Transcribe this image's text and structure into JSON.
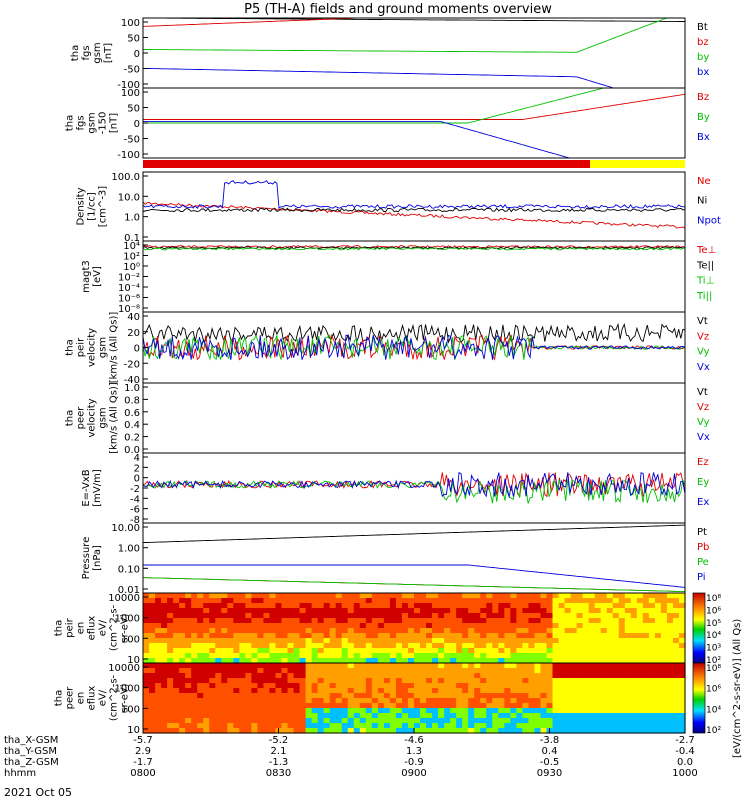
{
  "title": "P5 (TH-A) fields and ground moments overview",
  "date_label": "2021 Oct 05",
  "colors": {
    "black": "#000000",
    "red": "#e00000",
    "green": "#00c000",
    "blue": "#0000dd",
    "yellow": "#ffff00"
  },
  "chart_data": [
    {
      "id": "p1",
      "type": "line",
      "ylabel": [
        "tha",
        "fgs",
        "gsm",
        "[nT]"
      ],
      "ylim": [
        -100,
        100
      ],
      "yticks": [
        "100",
        "50",
        "0",
        "-50",
        "-100"
      ],
      "legend": [
        {
          "t": "Bt",
          "c": "black"
        },
        {
          "t": "bz",
          "c": "red"
        },
        {
          "t": "by",
          "c": "green"
        },
        {
          "t": "bx",
          "c": "blue"
        }
      ]
    },
    {
      "id": "p2",
      "type": "line",
      "ylabel": [
        "tha",
        "fgs",
        "gsm",
        "-150",
        "[nT]"
      ],
      "ylim": [
        -130,
        100
      ],
      "yticks": [
        "100",
        "50",
        "0",
        "-50",
        "-100"
      ],
      "legend": [
        {
          "t": "Bz",
          "c": "red"
        },
        {
          "t": "By",
          "c": "green"
        },
        {
          "t": "Bx",
          "c": "blue"
        }
      ]
    },
    {
      "id": "bar",
      "type": "mode-bar",
      "segments": [
        {
          "from": "08:00",
          "to": "09:39",
          "c": "red"
        },
        {
          "from": "09:39",
          "to": "10:00",
          "c": "yellow"
        }
      ]
    },
    {
      "id": "p3",
      "type": "line",
      "scale": "log",
      "ylabel": [
        "Density",
        "[1/cc]",
        "[cm^-3]"
      ],
      "yticks": [
        "100.0",
        "10.0",
        "1.0",
        "0.1"
      ],
      "legend": [
        {
          "t": "Ne",
          "c": "red"
        },
        {
          "t": "Ni",
          "c": "black"
        },
        {
          "t": "Npot",
          "c": "blue"
        }
      ]
    },
    {
      "id": "p4",
      "type": "line",
      "scale": "log",
      "ylabel": [
        "magt3",
        "[eV]"
      ],
      "yticks": [
        "10⁴",
        "10²",
        "10⁰",
        "10⁻²",
        "10⁻⁴",
        "10⁻⁶",
        "10⁻⁸"
      ],
      "legend": [
        {
          "t": "Te⊥",
          "c": "red"
        },
        {
          "t": "Te||",
          "c": "black"
        },
        {
          "t": "Ti⊥",
          "c": "green"
        },
        {
          "t": "Ti||",
          "c": "green"
        }
      ]
    },
    {
      "id": "p5",
      "type": "line",
      "ylabel": [
        "tha",
        "peir",
        "velocity",
        "gsm",
        "[km/s (All Qs)]"
      ],
      "ylim": [
        -40,
        40
      ],
      "yticks": [
        "40",
        "20",
        "0",
        "-20",
        "-40"
      ],
      "legend": [
        {
          "t": "Vt",
          "c": "black"
        },
        {
          "t": "Vz",
          "c": "red"
        },
        {
          "t": "Vy",
          "c": "green"
        },
        {
          "t": "Vx",
          "c": "blue"
        }
      ]
    },
    {
      "id": "p6",
      "type": "line",
      "ylabel": [
        "tha",
        "peer",
        "velocity",
        "gsm",
        "[km/s (All Qs)]"
      ],
      "ylim": [
        -1,
        1
      ],
      "yticks": [
        "1.0",
        "0.8",
        "0.6",
        "0.4",
        "0.2",
        "0.0"
      ],
      "legend": [
        {
          "t": "Vt",
          "c": "black"
        },
        {
          "t": "Vz",
          "c": "red"
        },
        {
          "t": "Vy",
          "c": "green"
        },
        {
          "t": "Vx",
          "c": "blue"
        }
      ]
    },
    {
      "id": "p7",
      "type": "line",
      "ylabel": [
        "E=-VxB",
        "[mV/m]"
      ],
      "ylim": [
        -8,
        5
      ],
      "yticks": [
        "4",
        "2",
        "0",
        "-2",
        "-4",
        "-6",
        "-8"
      ],
      "legend": [
        {
          "t": "Ez",
          "c": "red"
        },
        {
          "t": "Ey",
          "c": "green"
        },
        {
          "t": "Ex",
          "c": "blue"
        }
      ]
    },
    {
      "id": "p8",
      "type": "line",
      "scale": "log",
      "ylabel": [
        "Pressure",
        "[nPa]"
      ],
      "yticks": [
        "10.00",
        "1.00",
        "0.10",
        "0.01"
      ],
      "legend": [
        {
          "t": "Pt",
          "c": "black"
        },
        {
          "t": "Pb",
          "c": "red"
        },
        {
          "t": "Pe",
          "c": "green"
        },
        {
          "t": "Pi",
          "c": "blue"
        }
      ]
    },
    {
      "id": "p9",
      "type": "heatmap",
      "ylabel": [
        "tha",
        "peir",
        "en",
        "eflux",
        "eV/",
        "(cm^2-s-",
        "sr-eV)"
      ],
      "yticks": [
        "10000",
        "1000",
        "100",
        "10"
      ],
      "colorbar": [
        "10⁸",
        "10⁶",
        "10⁵",
        "10⁴",
        "10³",
        "10²"
      ]
    },
    {
      "id": "p10",
      "type": "heatmap",
      "ylabel": [
        "tha",
        "peer",
        "en",
        "eflux",
        "eV/",
        "(cm^2-s-",
        "sr-eV)"
      ],
      "yticks": [
        "10000",
        "1000",
        "100",
        "10"
      ],
      "colorbar": [
        "10⁸",
        "10⁶",
        "10⁴",
        "10²"
      ]
    }
  ],
  "colorbar_label": "[eV/(cm^2-s-sr-eV)] (All Qs)",
  "xaxis": {
    "rows": [
      {
        "label": "tha_X-GSM",
        "values": [
          "-5.7",
          "-5.2",
          "-4.6",
          "-3.8",
          "-2.7"
        ]
      },
      {
        "label": "tha_Y-GSM",
        "values": [
          "2.9",
          "2.1",
          "1.3",
          "0.4",
          "-0.4"
        ]
      },
      {
        "label": "tha_Z-GSM",
        "values": [
          "-1.7",
          "-1.3",
          "-0.9",
          "-0.5",
          "0.0"
        ]
      },
      {
        "label": "hhmm",
        "values": [
          "0800",
          "0830",
          "0900",
          "0930",
          "1000"
        ]
      }
    ]
  }
}
